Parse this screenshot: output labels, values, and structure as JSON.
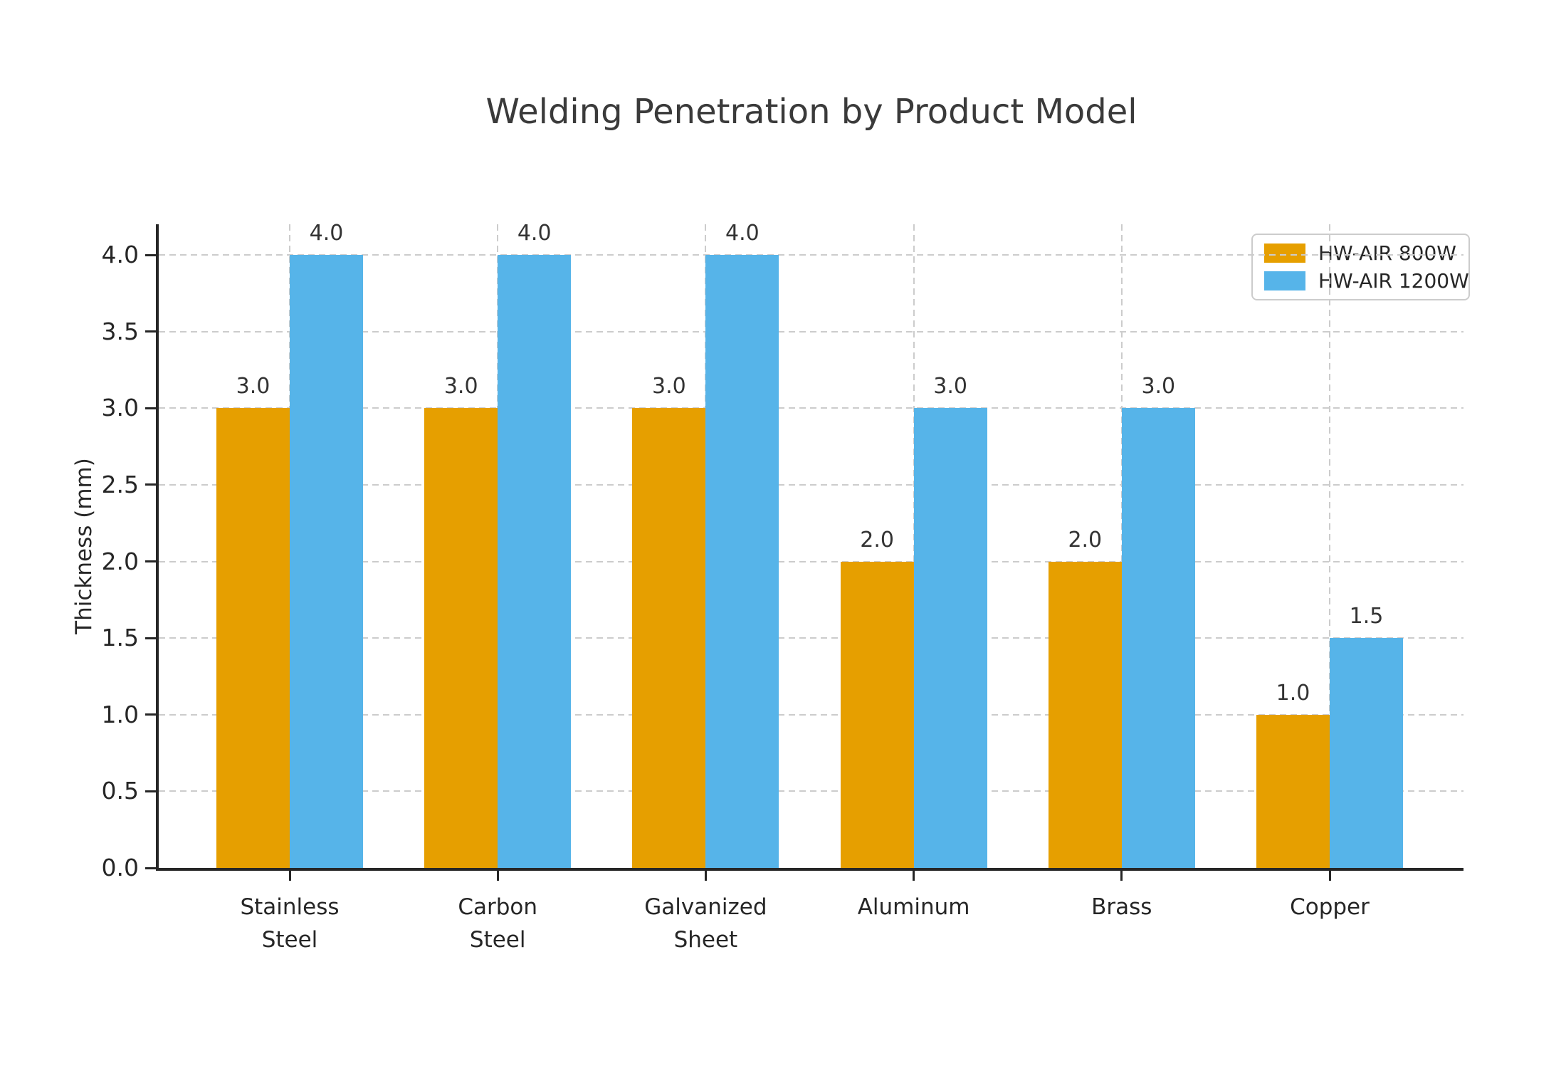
{
  "chart_data": {
    "type": "bar",
    "title": "Welding Penetration by Product Model",
    "ylabel": "Thickness (mm)",
    "xlabel": "",
    "categories": [
      "Stainless Steel",
      "Carbon Steel",
      "Galvanized Sheet",
      "Aluminum",
      "Brass",
      "Copper"
    ],
    "category_label_lines": [
      [
        "Stainless",
        "Steel"
      ],
      [
        "Carbon",
        "Steel"
      ],
      [
        "Galvanized",
        "Sheet"
      ],
      [
        "Aluminum"
      ],
      [
        "Brass"
      ],
      [
        "Copper"
      ]
    ],
    "series": [
      {
        "name": "HW-AIR 800W",
        "color": "#E69F00",
        "values": [
          3.0,
          3.0,
          3.0,
          2.0,
          2.0,
          1.0
        ]
      },
      {
        "name": "HW-AIR 1200W",
        "color": "#56B4E9",
        "values": [
          4.0,
          4.0,
          4.0,
          3.0,
          3.0,
          1.5
        ]
      }
    ],
    "yticks": [
      0.0,
      0.5,
      1.0,
      1.5,
      2.0,
      2.5,
      3.0,
      3.5,
      4.0
    ],
    "ylim": [
      0,
      4.2
    ],
    "grid": "dashed-both-axes",
    "legend_position": "upper right",
    "value_labels": true,
    "value_label_format": "one-decimal",
    "colors": {
      "background": "#ffffff",
      "grid": "#cccccc",
      "axis": "#262626",
      "tick_text": "#262626",
      "title_text": "#3a3a3a"
    }
  }
}
